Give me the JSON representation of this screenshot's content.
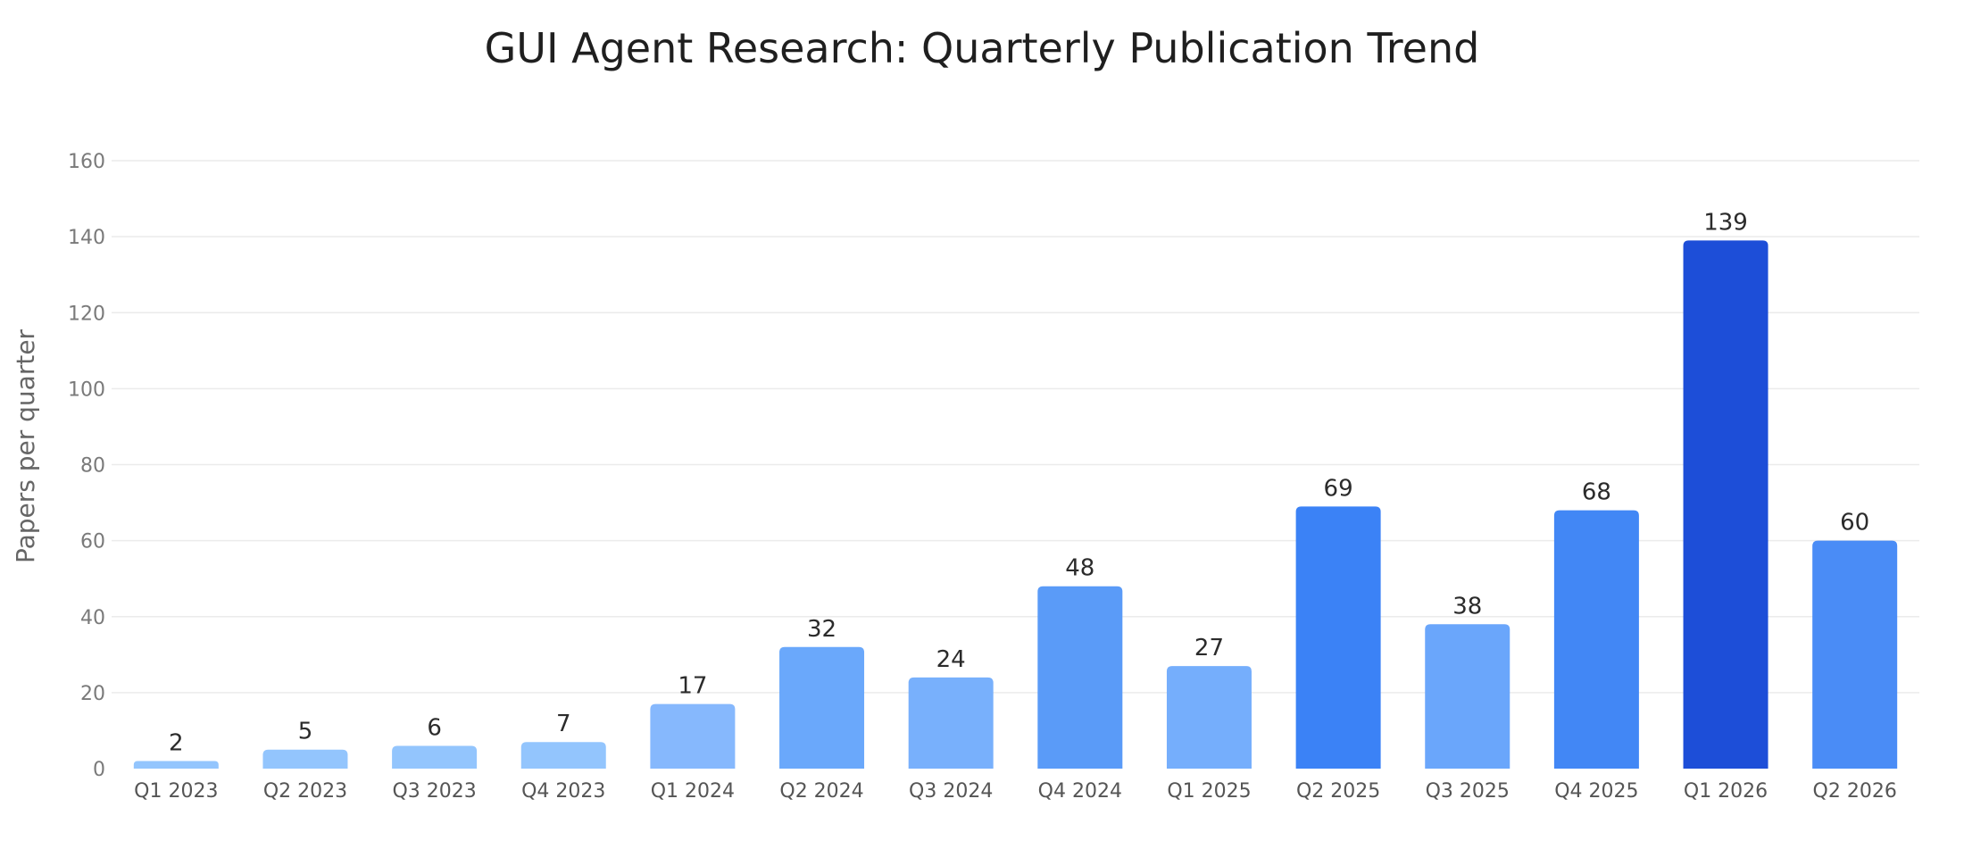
{
  "chart_data": {
    "type": "bar",
    "title": "GUI Agent Research: Quarterly Publication Trend",
    "xlabel": "",
    "ylabel": "Papers per quarter",
    "ylim": [
      0,
      160
    ],
    "yticks": [
      0,
      20,
      40,
      60,
      80,
      100,
      120,
      140,
      160
    ],
    "grid": true,
    "legend": "none",
    "categories": [
      "Q1 2023",
      "Q2 2023",
      "Q3 2023",
      "Q4 2023",
      "Q1 2024",
      "Q2 2024",
      "Q3 2024",
      "Q4 2024",
      "Q1 2025",
      "Q2 2025",
      "Q3 2025",
      "Q4 2025",
      "Q1 2026",
      "Q2 2026"
    ],
    "values": [
      2,
      5,
      6,
      7,
      17,
      32,
      24,
      48,
      27,
      69,
      38,
      68,
      139,
      60
    ],
    "colors": [
      "#93c5fd",
      "#93c5fd",
      "#93c5fd",
      "#93c5fd",
      "#86b8fd",
      "#6aa8fb",
      "#78b0fc",
      "#5a9bf8",
      "#75aefc",
      "#3b82f6",
      "#6aa6fb",
      "#4287f5",
      "#1d4ed8",
      "#4a8cf6"
    ]
  }
}
